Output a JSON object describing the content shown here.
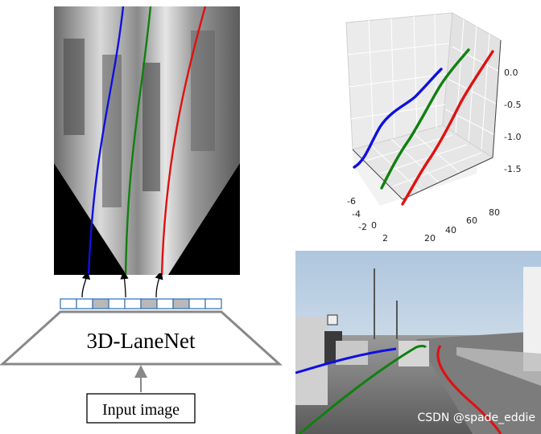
{
  "architecture": {
    "network_label": "3D-LaneNet",
    "input_label": "Input image",
    "anchor_cells": 10,
    "highlighted_cells": [
      2,
      5,
      7
    ]
  },
  "plot3d": {
    "x_ticks": [
      "-6",
      "-4",
      "-2",
      "0",
      "2"
    ],
    "y_ticks": [
      "20",
      "40",
      "60",
      "80"
    ],
    "z_ticks": [
      "0.0",
      "-0.5",
      "-1.0",
      "-1.5"
    ]
  },
  "lanes": [
    {
      "name": "blue",
      "color": "#1010e0"
    },
    {
      "name": "green",
      "color": "#108010"
    },
    {
      "name": "red",
      "color": "#e01010"
    }
  ],
  "photo": {
    "watermark": "CSDN @spade_eddie"
  }
}
